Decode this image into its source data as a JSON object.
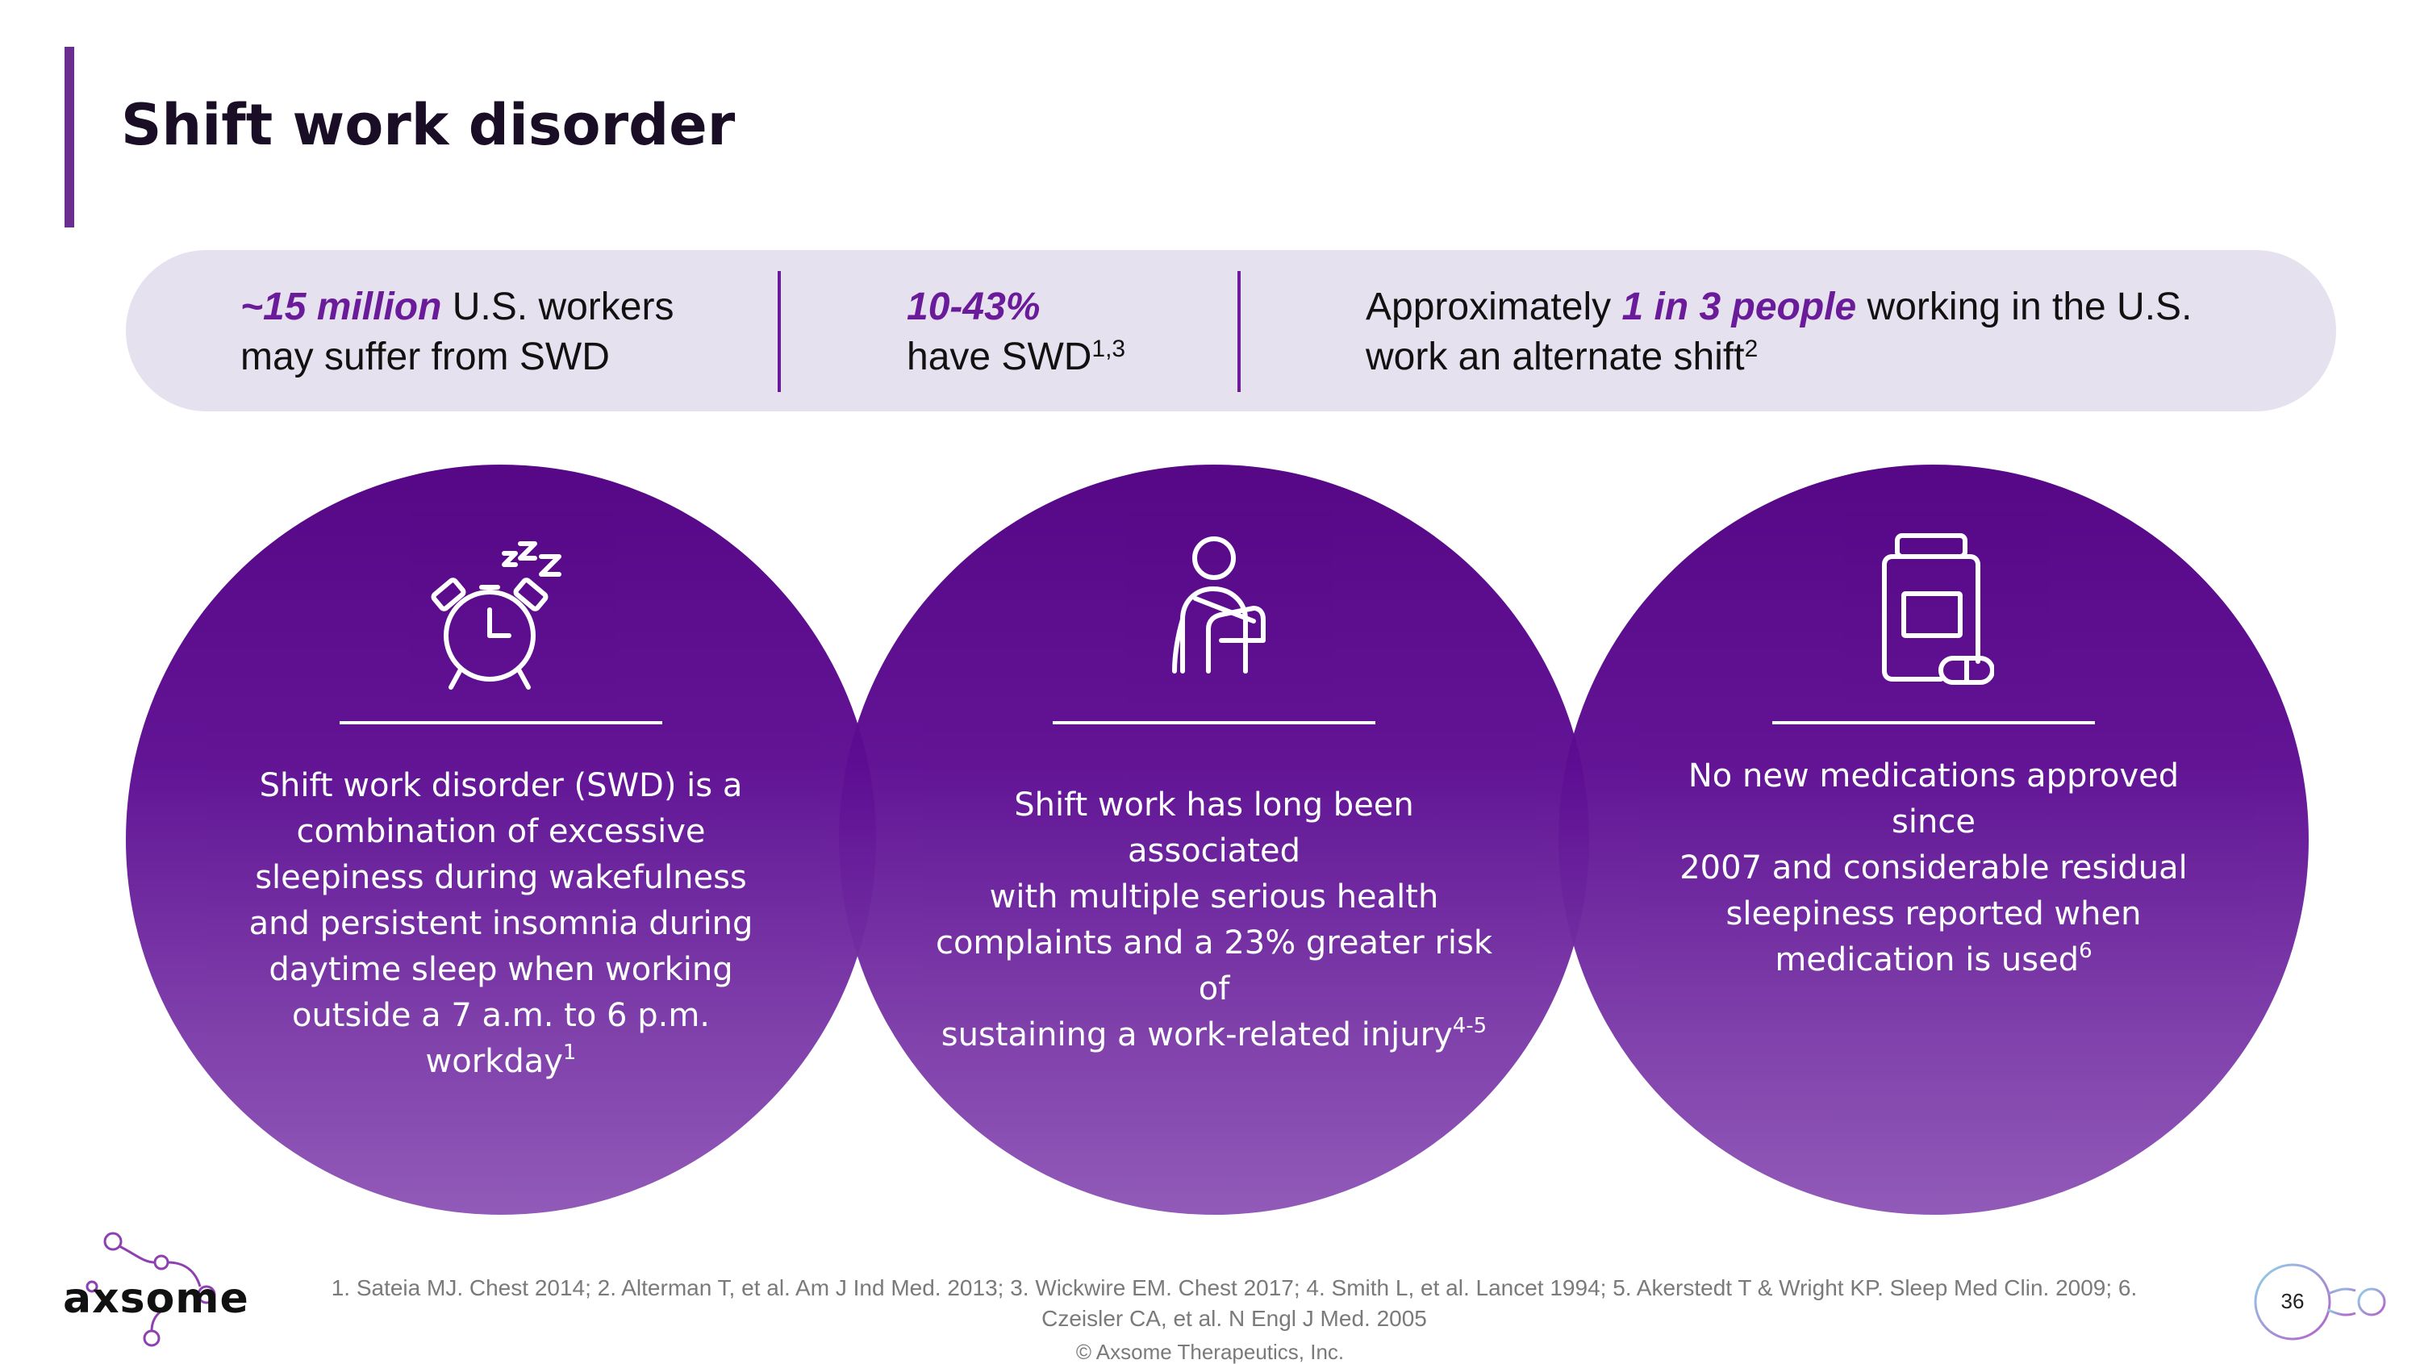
{
  "slide": {
    "title": "Shift work disorder",
    "page_number": "36"
  },
  "stats": [
    {
      "emphasis": "~15 million",
      "rest_line1": " U.S. workers",
      "line2": "may suffer from SWD"
    },
    {
      "emphasis": "10-43%",
      "line2": "have SWD",
      "sup": "1,3"
    },
    {
      "prefix": "Approximately ",
      "emphasis": "1 in 3 people",
      "rest_line1": " working in the U.S.",
      "line2": "work an alternate shift",
      "sup": "2"
    }
  ],
  "circles": [
    {
      "icon": "alarm-clock-sleep-icon",
      "lines": [
        "Shift work disorder (SWD) is a",
        "combination of excessive",
        "sleepiness during wakefulness",
        "and persistent insomnia during",
        "daytime sleep when working",
        "outside a 7 a.m. to 6 p.m."
      ],
      "last_line": "workday",
      "sup": "1"
    },
    {
      "icon": "injured-person-arm-sling-icon",
      "lines": [
        "Shift work has long been associated",
        "with multiple serious health",
        "complaints and a 23% greater risk of"
      ],
      "last_line": "sustaining a work-related injury",
      "sup": "4-5"
    },
    {
      "icon": "medication-bottle-pill-icon",
      "lines": [
        "No new medications approved since",
        "2007 and considerable residual",
        "sleepiness reported when"
      ],
      "last_line": "medication is used",
      "sup": "6"
    }
  ],
  "footer": {
    "references_line1": "1. Sateia MJ. Chest 2014; 2. Alterman T, et al. Am J Ind Med. 2013; 3. Wickwire EM. Chest 2017; 4. Smith L, et al. Lancet 1994; 5. Akerstedt T & Wright KP. Sleep Med Clin. 2009; 6.",
    "references_line2": "Czeisler CA, et al. N Engl J Med. 2005",
    "copyright": "© Axsome Therapeutics, Inc.",
    "logo_text": "axsome"
  },
  "colors": {
    "accent": "#6a1b9a",
    "circle_top": "#510083",
    "circle_bottom": "#8e55b6",
    "band": "#e6e1ef"
  }
}
